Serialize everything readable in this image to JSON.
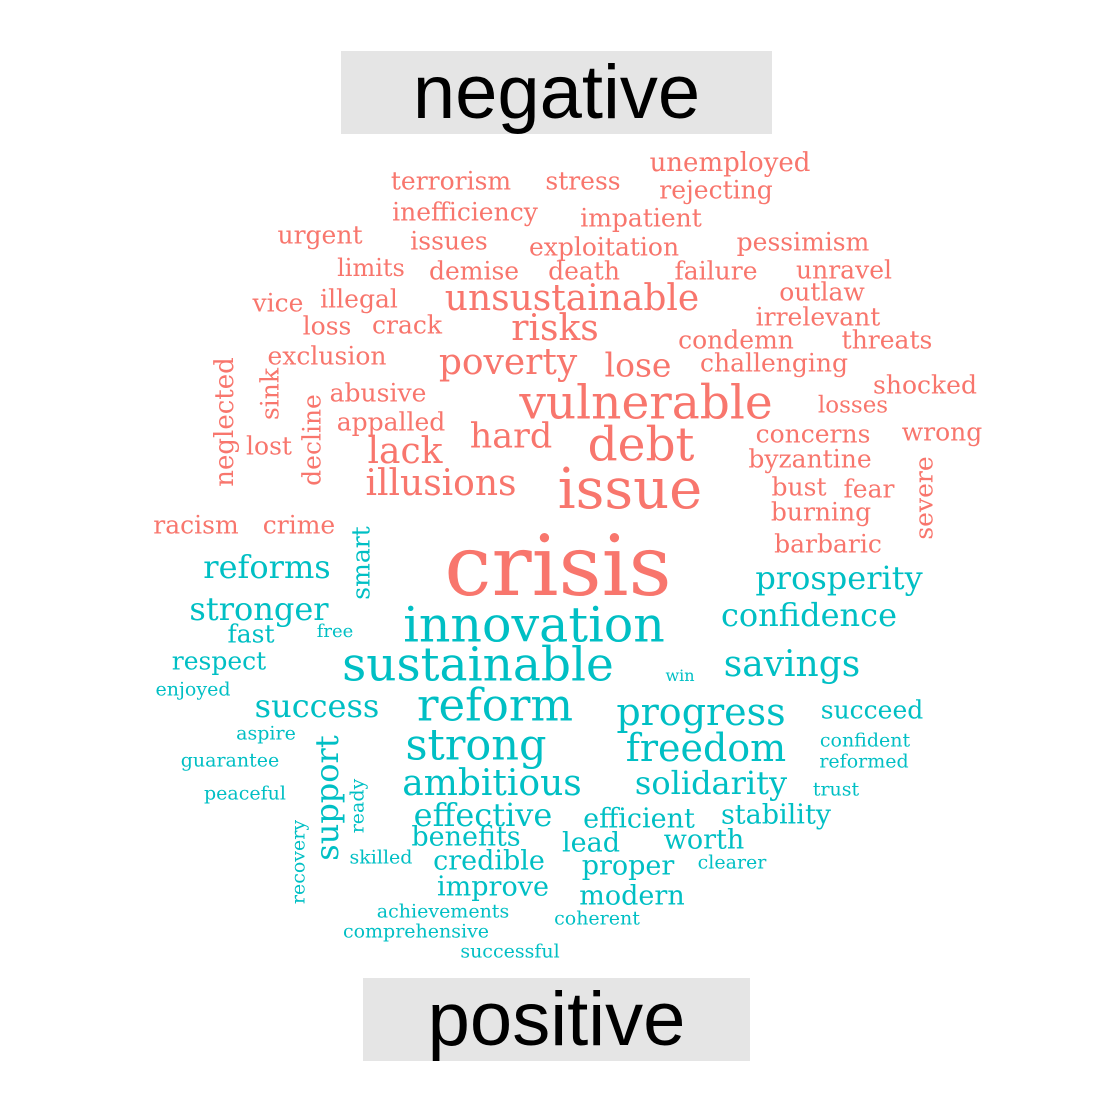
{
  "labels": {
    "negative": "negative",
    "positive": "positive"
  },
  "colors": {
    "negative": "#f8766d",
    "positive": "#00bfc4",
    "label_bg": "#e5e5e5",
    "label_text": "#000000"
  },
  "words": [
    {
      "text": "unemployed",
      "sentiment": "negative"
    },
    {
      "text": "terrorism",
      "sentiment": "negative"
    },
    {
      "text": "stress",
      "sentiment": "negative"
    },
    {
      "text": "rejecting",
      "sentiment": "negative"
    },
    {
      "text": "inefficiency",
      "sentiment": "negative"
    },
    {
      "text": "impatient",
      "sentiment": "negative"
    },
    {
      "text": "urgent",
      "sentiment": "negative"
    },
    {
      "text": "issues",
      "sentiment": "negative"
    },
    {
      "text": "exploitation",
      "sentiment": "negative"
    },
    {
      "text": "pessimism",
      "sentiment": "negative"
    },
    {
      "text": "limits",
      "sentiment": "negative"
    },
    {
      "text": "demise",
      "sentiment": "negative"
    },
    {
      "text": "death",
      "sentiment": "negative"
    },
    {
      "text": "failure",
      "sentiment": "negative"
    },
    {
      "text": "unravel",
      "sentiment": "negative"
    },
    {
      "text": "vice",
      "sentiment": "negative"
    },
    {
      "text": "illegal",
      "sentiment": "negative"
    },
    {
      "text": "unsustainable",
      "sentiment": "negative"
    },
    {
      "text": "outlaw",
      "sentiment": "negative"
    },
    {
      "text": "loss",
      "sentiment": "negative"
    },
    {
      "text": "crack",
      "sentiment": "negative"
    },
    {
      "text": "risks",
      "sentiment": "negative"
    },
    {
      "text": "irrelevant",
      "sentiment": "negative"
    },
    {
      "text": "condemn",
      "sentiment": "negative"
    },
    {
      "text": "threats",
      "sentiment": "negative"
    },
    {
      "text": "exclusion",
      "sentiment": "negative"
    },
    {
      "text": "poverty",
      "sentiment": "negative"
    },
    {
      "text": "lose",
      "sentiment": "negative"
    },
    {
      "text": "challenging",
      "sentiment": "negative"
    },
    {
      "text": "neglected",
      "sentiment": "negative"
    },
    {
      "text": "sink",
      "sentiment": "negative"
    },
    {
      "text": "abusive",
      "sentiment": "negative"
    },
    {
      "text": "shocked",
      "sentiment": "negative"
    },
    {
      "text": "vulnerable",
      "sentiment": "negative"
    },
    {
      "text": "losses",
      "sentiment": "negative"
    },
    {
      "text": "decline",
      "sentiment": "negative"
    },
    {
      "text": "appalled",
      "sentiment": "negative"
    },
    {
      "text": "lost",
      "sentiment": "negative"
    },
    {
      "text": "hard",
      "sentiment": "negative"
    },
    {
      "text": "debt",
      "sentiment": "negative"
    },
    {
      "text": "concerns",
      "sentiment": "negative"
    },
    {
      "text": "wrong",
      "sentiment": "negative"
    },
    {
      "text": "lack",
      "sentiment": "negative"
    },
    {
      "text": "byzantine",
      "sentiment": "negative"
    },
    {
      "text": "illusions",
      "sentiment": "negative"
    },
    {
      "text": "issue",
      "sentiment": "negative"
    },
    {
      "text": "bust",
      "sentiment": "negative"
    },
    {
      "text": "fear",
      "sentiment": "negative"
    },
    {
      "text": "severe",
      "sentiment": "negative"
    },
    {
      "text": "burning",
      "sentiment": "negative"
    },
    {
      "text": "racism",
      "sentiment": "negative"
    },
    {
      "text": "crime",
      "sentiment": "negative"
    },
    {
      "text": "crisis",
      "sentiment": "negative"
    },
    {
      "text": "barbaric",
      "sentiment": "negative"
    },
    {
      "text": "smart",
      "sentiment": "positive"
    },
    {
      "text": "reforms",
      "sentiment": "positive"
    },
    {
      "text": "prosperity",
      "sentiment": "positive"
    },
    {
      "text": "stronger",
      "sentiment": "positive"
    },
    {
      "text": "innovation",
      "sentiment": "positive"
    },
    {
      "text": "confidence",
      "sentiment": "positive"
    },
    {
      "text": "fast",
      "sentiment": "positive"
    },
    {
      "text": "free",
      "sentiment": "positive"
    },
    {
      "text": "respect",
      "sentiment": "positive"
    },
    {
      "text": "sustainable",
      "sentiment": "positive"
    },
    {
      "text": "savings",
      "sentiment": "positive"
    },
    {
      "text": "win",
      "sentiment": "positive"
    },
    {
      "text": "enjoyed",
      "sentiment": "positive"
    },
    {
      "text": "success",
      "sentiment": "positive"
    },
    {
      "text": "reform",
      "sentiment": "positive"
    },
    {
      "text": "progress",
      "sentiment": "positive"
    },
    {
      "text": "succeed",
      "sentiment": "positive"
    },
    {
      "text": "aspire",
      "sentiment": "positive"
    },
    {
      "text": "support",
      "sentiment": "positive"
    },
    {
      "text": "strong",
      "sentiment": "positive"
    },
    {
      "text": "freedom",
      "sentiment": "positive"
    },
    {
      "text": "confident",
      "sentiment": "positive"
    },
    {
      "text": "guarantee",
      "sentiment": "positive"
    },
    {
      "text": "reformed",
      "sentiment": "positive"
    },
    {
      "text": "ambitious",
      "sentiment": "positive"
    },
    {
      "text": "solidarity",
      "sentiment": "positive"
    },
    {
      "text": "trust",
      "sentiment": "positive"
    },
    {
      "text": "peaceful",
      "sentiment": "positive"
    },
    {
      "text": "ready",
      "sentiment": "positive"
    },
    {
      "text": "effective",
      "sentiment": "positive"
    },
    {
      "text": "stability",
      "sentiment": "positive"
    },
    {
      "text": "efficient",
      "sentiment": "positive"
    },
    {
      "text": "recovery",
      "sentiment": "positive"
    },
    {
      "text": "benefits",
      "sentiment": "positive"
    },
    {
      "text": "lead",
      "sentiment": "positive"
    },
    {
      "text": "worth",
      "sentiment": "positive"
    },
    {
      "text": "skilled",
      "sentiment": "positive"
    },
    {
      "text": "credible",
      "sentiment": "positive"
    },
    {
      "text": "proper",
      "sentiment": "positive"
    },
    {
      "text": "clearer",
      "sentiment": "positive"
    },
    {
      "text": "improve",
      "sentiment": "positive"
    },
    {
      "text": "modern",
      "sentiment": "positive"
    },
    {
      "text": "achievements",
      "sentiment": "positive"
    },
    {
      "text": "coherent",
      "sentiment": "positive"
    },
    {
      "text": "comprehensive",
      "sentiment": "positive"
    },
    {
      "text": "successful",
      "sentiment": "positive"
    }
  ]
}
